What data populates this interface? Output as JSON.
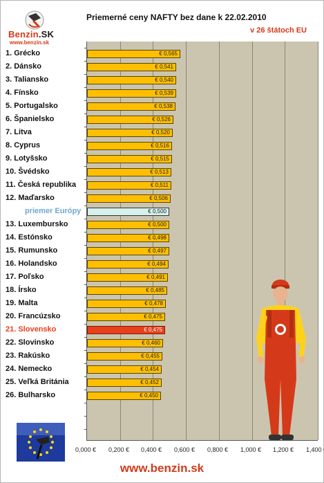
{
  "logo": {
    "brand_part1": "Benzin",
    "brand_part2": ".SK",
    "url": "www.benzin.sk"
  },
  "header": {
    "title": "Priemerné ceny NAFTY bez dane k 22.02.2010",
    "subtitle": "v 26 štátoch EU"
  },
  "footer": {
    "url": "www.benzin.sk"
  },
  "colors": {
    "bar": "#ffbf00",
    "average": "#d6f0ec",
    "highlight": "#e8401c",
    "plot_bg": "#cbc5b0",
    "accent": "#d43a1a"
  },
  "chart_data": {
    "type": "bar",
    "orientation": "horizontal",
    "title": "Priemerné ceny NAFTY bez dane k 22.02.2010",
    "subtitle": "v 26 štátoch EU",
    "xlim": [
      0,
      1.4
    ],
    "x_ticks": [
      "0,000 €",
      "0,200 €",
      "0,400 €",
      "0,600 €",
      "0,800 €",
      "1,000 €",
      "1,200 €",
      "1,400 €"
    ],
    "grid": true,
    "categories": [
      "1. Grécko",
      "2. Dánsko",
      "3. Taliansko",
      "4. Fínsko",
      "5. Portugalsko",
      "6. Španielsko",
      "7. Litva",
      "8. Cyprus",
      "9. Lotyšsko",
      "10. Švédsko",
      "11. Česká republika",
      "12. Maďarsko",
      "priemer Európy",
      "13. Luxembursko",
      "14. Estónsko",
      "15. Rumunsko",
      "16. Holandsko",
      "17. Poľsko",
      "18. Írsko",
      "19. Malta",
      "20. Francúzsko",
      "21. Slovensko",
      "22. Slovinsko",
      "23. Rakúsko",
      "24. Nemecko",
      "25. Veľká Británia",
      "26. Bulharsko"
    ],
    "values": [
      0.565,
      0.541,
      0.54,
      0.539,
      0.538,
      0.526,
      0.52,
      0.516,
      0.515,
      0.513,
      0.511,
      0.506,
      0.5,
      0.5,
      0.498,
      0.497,
      0.494,
      0.491,
      0.485,
      0.478,
      0.475,
      0.475,
      0.46,
      0.455,
      0.454,
      0.452,
      0.45
    ],
    "value_labels": [
      "€ 0,565",
      "€ 0,541",
      "€ 0,540",
      "€ 0,539",
      "€ 0,538",
      "€ 0,526",
      "€ 0,520",
      "€ 0,516",
      "€ 0,515",
      "€ 0,513",
      "€ 0,511",
      "€ 0,506",
      "€ 0,500",
      "€ 0,500",
      "€ 0,498",
      "€ 0,497",
      "€ 0,494",
      "€ 0,491",
      "€ 0,485",
      "€ 0,478",
      "€ 0,475",
      "€ 0,475",
      "€ 0,460",
      "€ 0,455",
      "€ 0,454",
      "€ 0,452",
      "€ 0,450"
    ],
    "average_index": 12,
    "highlight_index": 21
  }
}
